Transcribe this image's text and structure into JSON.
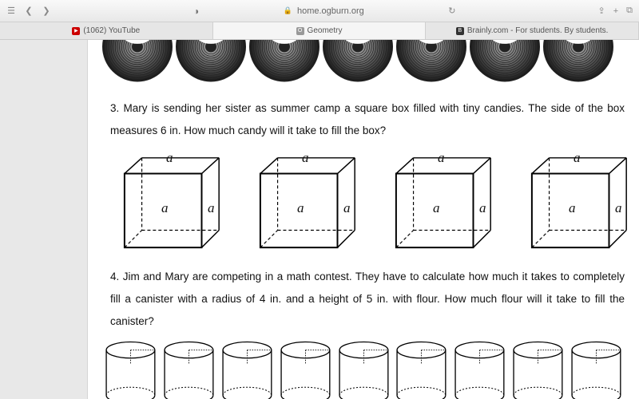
{
  "browser": {
    "url": "home.ogburn.org",
    "tabs": [
      {
        "label": "(1062) YouTube",
        "icon": "yt"
      },
      {
        "label": "Geometry",
        "icon": "ob",
        "active": true
      },
      {
        "label": "Brainly.com - For students. By students.",
        "icon": "br"
      }
    ]
  },
  "page": {
    "spiral_count": 7,
    "q3": "3. Mary is sending her sister as summer camp a square box filled with tiny candies. The side of the box measures 6 in. How much candy will it take to fill the box?",
    "cubes": {
      "count": 4,
      "edge_label": "a"
    },
    "q4": "4. Jim and Mary are competing in a math contest. They have to calculate how much it takes to completely fill a canister with a radius of 4 in. and a height of 5 in. with flour. How much flour will it take to fill the canister?",
    "cylinder_count": 9
  },
  "style": {
    "text_color": "#111111",
    "stroke": "#000000",
    "bg": "#ffffff"
  }
}
